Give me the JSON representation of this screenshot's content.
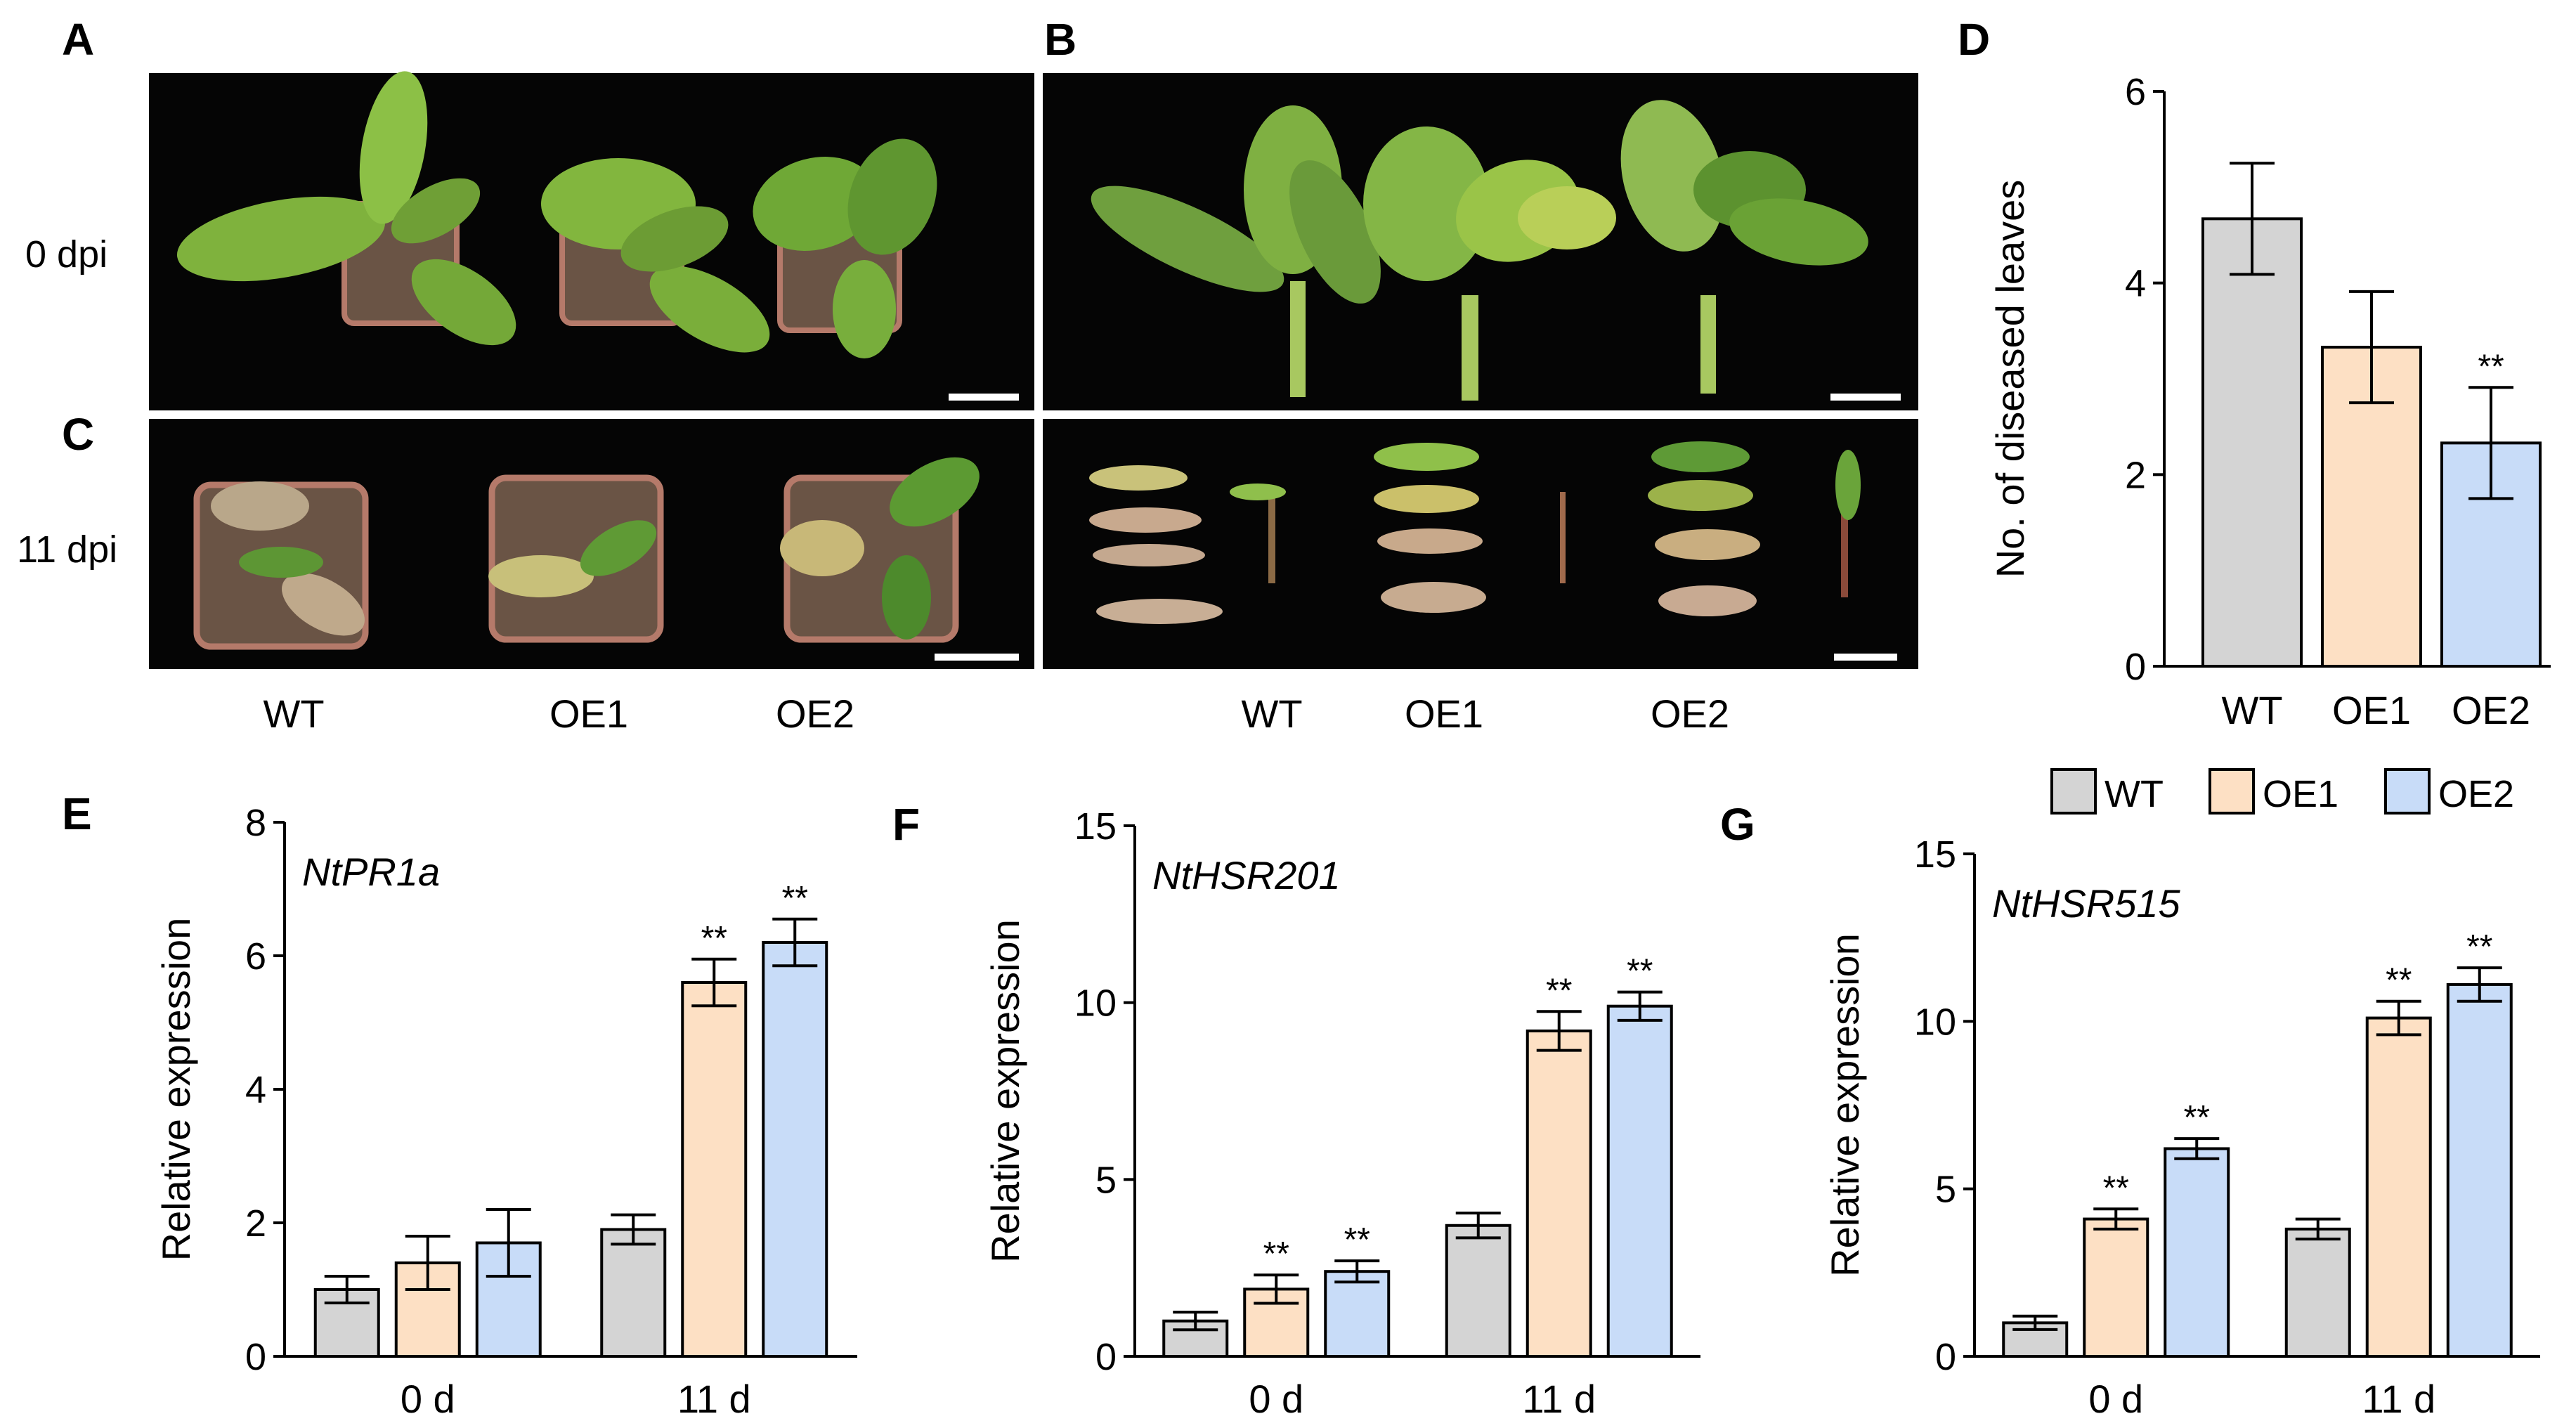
{
  "colors": {
    "wt": "#d4d4d4",
    "oe1": "#fde0c4",
    "oe2": "#c8dcf8",
    "axis": "#000000",
    "photo_bg": "#050505"
  },
  "panels": {
    "A": {
      "letter": "A"
    },
    "B": {
      "letter": "B"
    },
    "C": {
      "letter": "C"
    },
    "D": {
      "letter": "D"
    },
    "E": {
      "letter": "E"
    },
    "F": {
      "letter": "F"
    },
    "G": {
      "letter": "G"
    }
  },
  "photos": {
    "row_labels": [
      "0 dpi",
      "11 dpi"
    ],
    "left_labels": [
      "WT",
      "OE1",
      "OE2"
    ],
    "right_labels": [
      "WT",
      "OE1",
      "OE2"
    ]
  },
  "legend": [
    "WT",
    "OE1",
    "OE2"
  ],
  "chart_data": [
    {
      "panel": "D",
      "type": "bar",
      "categories": [
        "WT",
        "OE1",
        "OE2"
      ],
      "values": [
        4.67,
        3.33,
        2.33
      ],
      "errors": [
        0.58,
        0.58,
        0.58
      ],
      "significance": [
        "",
        "",
        "**"
      ],
      "ylabel": "No. of diseased leaves",
      "ylim": [
        0,
        6
      ],
      "yticks": [
        "0",
        "2",
        "4",
        "6"
      ],
      "ytick_values": [
        0,
        2,
        4,
        6
      ]
    },
    {
      "panel": "E",
      "type": "bar",
      "gene": "NtPR1a",
      "categories": [
        "0 d",
        "11 d"
      ],
      "ylabel": "Relative expression",
      "ylim": [
        0,
        8
      ],
      "yticks": [
        "0",
        "2",
        "4",
        "6",
        "8"
      ],
      "ytick_values": [
        0,
        2,
        4,
        6,
        8
      ],
      "series": [
        {
          "name": "WT",
          "values": [
            1.0,
            1.9
          ],
          "errors": [
            0.2,
            0.22
          ],
          "significance": [
            "",
            ""
          ]
        },
        {
          "name": "OE1",
          "values": [
            1.4,
            5.6
          ],
          "errors": [
            0.4,
            0.35
          ],
          "significance": [
            "",
            "**"
          ]
        },
        {
          "name": "OE2",
          "values": [
            1.7,
            6.2
          ],
          "errors": [
            0.5,
            0.35
          ],
          "significance": [
            "",
            "**"
          ]
        }
      ]
    },
    {
      "panel": "F",
      "type": "bar",
      "gene": "NtHSR201",
      "categories": [
        "0 d",
        "11 d"
      ],
      "ylabel": "Relative expression",
      "ylim": [
        0,
        15
      ],
      "yticks": [
        "0",
        "5",
        "10",
        "15"
      ],
      "ytick_values": [
        0,
        5,
        10,
        15
      ],
      "series": [
        {
          "name": "WT",
          "values": [
            1.0,
            3.7
          ],
          "errors": [
            0.25,
            0.35
          ],
          "significance": [
            "",
            ""
          ]
        },
        {
          "name": "OE1",
          "values": [
            1.9,
            9.2
          ],
          "errors": [
            0.4,
            0.55
          ],
          "significance": [
            "**",
            "**"
          ]
        },
        {
          "name": "OE2",
          "values": [
            2.4,
            9.9
          ],
          "errors": [
            0.3,
            0.4
          ],
          "significance": [
            "**",
            "**"
          ]
        }
      ]
    },
    {
      "panel": "G",
      "type": "bar",
      "gene": "NtHSR515",
      "categories": [
        "0 d",
        "11 d"
      ],
      "ylabel": "Relative expression",
      "ylim": [
        0,
        15
      ],
      "yticks": [
        "0",
        "5",
        "10",
        "15"
      ],
      "ytick_values": [
        0,
        5,
        10,
        15
      ],
      "series": [
        {
          "name": "WT",
          "values": [
            1.0,
            3.8
          ],
          "errors": [
            0.2,
            0.3
          ],
          "significance": [
            "",
            ""
          ]
        },
        {
          "name": "OE1",
          "values": [
            4.1,
            10.1
          ],
          "errors": [
            0.3,
            0.5
          ],
          "significance": [
            "**",
            "**"
          ]
        },
        {
          "name": "OE2",
          "values": [
            6.2,
            11.1
          ],
          "errors": [
            0.3,
            0.5
          ],
          "significance": [
            "**",
            "**"
          ]
        }
      ]
    }
  ]
}
